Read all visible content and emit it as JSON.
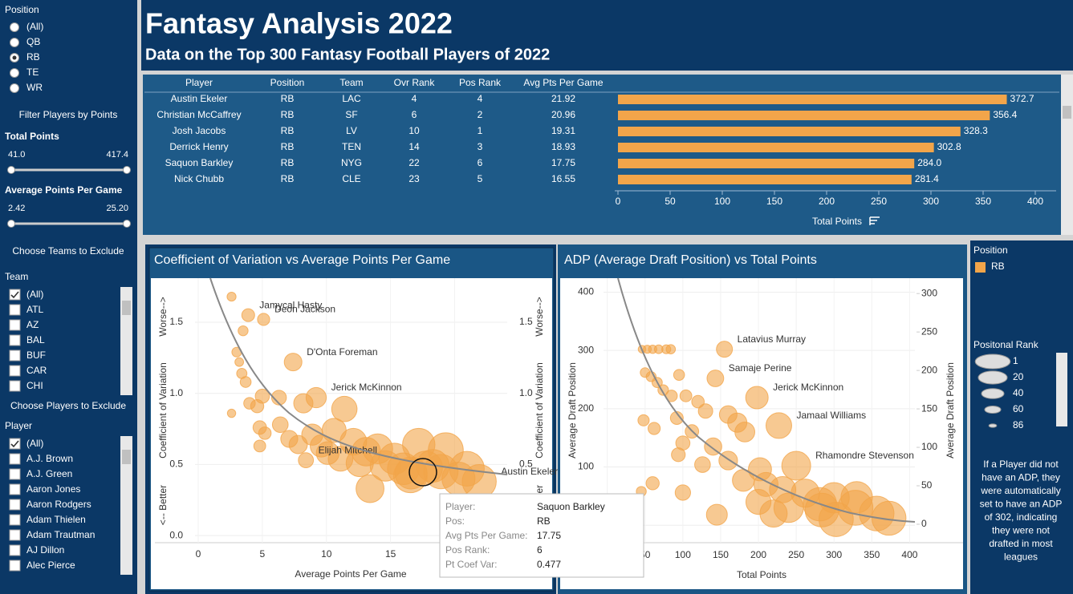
{
  "header": {
    "title": "Fantasy Analysis 2022",
    "subtitle": "Data on the Top 300 Fantasy Football Players of 2022"
  },
  "filters": {
    "position": {
      "title": "Position",
      "options": [
        "(All)",
        "QB",
        "RB",
        "TE",
        "WR"
      ],
      "selected": "RB"
    },
    "points_title": "Filter Players by Points",
    "total_points": {
      "title": "Total Points",
      "min": "41.0",
      "max": "417.4"
    },
    "avg_points": {
      "title": "Average Points Per Game",
      "min": "2.42",
      "max": "25.20"
    },
    "teams": {
      "heading": "Choose Teams to Exclude",
      "title": "Team",
      "options": [
        "(All)",
        "ATL",
        "AZ",
        "BAL",
        "BUF",
        "CAR",
        "CHI"
      ]
    },
    "players": {
      "heading": "Choose Players to Exclude",
      "title": "Player",
      "options": [
        "(All)",
        "A.J. Brown",
        "A.J. Green",
        "Aaron Jones",
        "Aaron Rodgers",
        "Adam Thielen",
        "Adam Trautman",
        "AJ Dillon",
        "Alec Pierce"
      ]
    }
  },
  "table": {
    "columns": [
      "Player",
      "Position",
      "Team",
      "Ovr Rank",
      "Pos Rank",
      "Avg Pts Per Game"
    ],
    "rows": [
      [
        "Austin Ekeler",
        "RB",
        "LAC",
        4,
        4,
        21.92
      ],
      [
        "Christian McCaffrey",
        "RB",
        "SF",
        6,
        2,
        20.96
      ],
      [
        "Josh Jacobs",
        "RB",
        "LV",
        10,
        1,
        19.31
      ],
      [
        "Derrick Henry",
        "RB",
        "TEN",
        14,
        3,
        18.93
      ],
      [
        "Saquon Barkley",
        "RB",
        "NYG",
        22,
        6,
        17.75
      ],
      [
        "Nick Chubb",
        "RB",
        "CLE",
        23,
        5,
        16.55
      ]
    ]
  },
  "chart_data": [
    {
      "type": "hbar",
      "x_label": "Total Points",
      "color": "#f2a54a",
      "values": [
        372.7,
        356.4,
        328.3,
        302.8,
        284.0,
        281.4
      ],
      "value_labels": [
        "372.7",
        "356.4",
        "328.3",
        "302.8",
        "284.0",
        "281.4"
      ],
      "xlim": [
        0,
        420
      ],
      "xticks": [
        0,
        50,
        100,
        150,
        200,
        250,
        300,
        350,
        400
      ]
    },
    {
      "type": "scatter",
      "title": "Coefficient of Variation vs Average Points Per Game",
      "x_label": "Average Points Per Game",
      "y_label": "Coefficient of Variation",
      "y_top_note": "Worse-->",
      "y_bottom_note": "<-- Better",
      "xlim": [
        -0.25,
        24.1
      ],
      "xticks": [
        0,
        5,
        10,
        15,
        20
      ],
      "ylim": [
        -0.05,
        1.81
      ],
      "yticks": [
        {
          "value": 0,
          "label": "0.0"
        },
        {
          "value": 0.5,
          "label": "0.5"
        },
        {
          "value": 1,
          "label": "1.0"
        },
        {
          "value": 1.5,
          "label": "1.5"
        }
      ],
      "grid": true,
      "series": [
        {
          "name": "RB",
          "color": "#f2a54a",
          "x": [
            2.6,
            3.9,
            5.1,
            3.5,
            3.0,
            3.2,
            3.4,
            3.7,
            4.0,
            2.6,
            4.6,
            4.8,
            5.0,
            5.2,
            4.8,
            6.3,
            6.4,
            7.4,
            7.1,
            7.8,
            8.2,
            8.4,
            9.2,
            8.9,
            9.6,
            10.1,
            10.6,
            11.4,
            11.1,
            12.1,
            12.6,
            13.1,
            13.4,
            14.0,
            14.6,
            15.3,
            16.0,
            16.6,
            17.2,
            17.75,
            18.3,
            19.31,
            18.93,
            20.3,
            20.96,
            21.92,
            16.55
          ],
          "values": [
            1.68,
            1.55,
            1.52,
            1.44,
            1.29,
            1.22,
            1.14,
            1.08,
            0.93,
            0.86,
            0.91,
            0.76,
            0.98,
            0.72,
            0.63,
            0.97,
            0.78,
            1.22,
            0.68,
            0.64,
            0.93,
            0.53,
            0.97,
            0.71,
            0.63,
            0.58,
            0.74,
            0.89,
            0.54,
            0.66,
            0.51,
            0.59,
            0.33,
            0.61,
            0.49,
            0.54,
            0.47,
            0.44,
            0.64,
            0.477,
            0.49,
            0.6,
            0.45,
            0.4,
            0.47,
            0.38,
            0.42
          ],
          "sizes": [
            82,
            70,
            72,
            79,
            80,
            83,
            78,
            76,
            74,
            84,
            69,
            68,
            66,
            71,
            73,
            64,
            61,
            55,
            57,
            53,
            50,
            63,
            47,
            44,
            41,
            39,
            35,
            31,
            33,
            27,
            25,
            21,
            23,
            17,
            15,
            13,
            11,
            10,
            9,
            6,
            8,
            1,
            3,
            7,
            2,
            4,
            5
          ],
          "labels": [
            null,
            "Jamycal Hasty",
            "Deon Jackson",
            null,
            null,
            null,
            null,
            null,
            null,
            null,
            null,
            null,
            null,
            null,
            null,
            null,
            null,
            "D'Onta Foreman",
            null,
            null,
            null,
            "Elijah Mitchell",
            "Jerick McKinnon",
            null,
            null,
            null,
            null,
            null,
            null,
            null,
            null,
            null,
            null,
            null,
            null,
            null,
            null,
            null,
            null,
            null,
            null,
            null,
            null,
            null,
            null,
            "Austin Ekeler",
            null
          ]
        }
      ]
    },
    {
      "type": "scatter",
      "title": "ADP (Average Draft Position) vs Total Points",
      "x_label": "Total Points",
      "y_label": "Average Draft Position",
      "xlim": [
        -5,
        407
      ],
      "xticks": [
        0,
        50,
        100,
        150,
        200,
        250,
        300,
        350,
        400
      ],
      "ylim": [
        -30,
        424
      ],
      "yticks": [
        0,
        100,
        200,
        300,
        400
      ],
      "y2lim": [
        -24,
        320
      ],
      "y2ticks": [
        0,
        50,
        100,
        150,
        200,
        250,
        300
      ],
      "grid": true,
      "series": [
        {
          "color": "#f2a54a",
          "x": [
            46,
            53,
            60,
            68,
            78,
            84,
            50,
            58,
            66,
            95,
            74,
            85,
            104,
            120,
            48,
            62,
            92,
            112,
            130,
            155,
            143,
            198,
            160,
            172,
            182,
            227,
            100,
            94,
            140,
            126,
            160,
            202,
            250,
            210,
            180,
            232,
            262,
            300,
            330,
            356.4,
            372.7,
            284,
            328.3,
            302.8,
            281.4,
            240,
            220,
            200,
            145,
            100,
            60,
            45
          ],
          "values": [
            302,
            302,
            302,
            302,
            302,
            302,
            262,
            255,
            245,
            258,
            232,
            222,
            222,
            212,
            180,
            166,
            184,
            161,
            196,
            302,
            252,
            219,
            190,
            176,
            160,
            171,
            141,
            121,
            135,
            104,
            111,
            96,
            102,
            70,
            77,
            61,
            55,
            47,
            48,
            20,
            12,
            26,
            30,
            10,
            36,
            30,
            20,
            40,
            18,
            56,
            72,
            58
          ],
          "sizes": [
            86,
            85,
            84,
            83,
            82,
            81,
            80,
            79,
            78,
            76,
            77,
            74,
            73,
            71,
            75,
            72,
            70,
            68,
            65,
            60,
            58,
            40,
            55,
            50,
            48,
            30,
            66,
            67,
            56,
            61,
            52,
            38,
            20,
            35,
            42,
            28,
            22,
            15,
            12,
            2,
            4,
            5,
            1,
            3,
            6,
            18,
            25,
            32,
            45,
            62,
            69,
            79
          ],
          "labels": [
            null,
            null,
            null,
            null,
            null,
            null,
            null,
            null,
            null,
            null,
            null,
            null,
            null,
            null,
            null,
            null,
            null,
            null,
            null,
            "Latavius Murray",
            "Samaje Perine",
            "Jerick McKinnon",
            null,
            null,
            null,
            "Jamaal Williams",
            null,
            null,
            null,
            null,
            null,
            null,
            "Rhamondre Stevenson",
            null,
            null,
            null,
            null,
            null,
            null,
            null,
            null,
            null,
            null,
            null,
            null,
            null,
            null,
            null,
            null,
            null,
            null,
            null
          ]
        }
      ]
    }
  ],
  "legend": {
    "position_title": "Position",
    "size_title": "Positonal Rank",
    "size_values": [
      1,
      20,
      40,
      60,
      86
    ]
  },
  "note": [
    "If a Player did not",
    "have an ADP, they",
    "were automatically",
    "set to have an ADP",
    "of 302, indicating",
    "they were not",
    "drafted in most",
    "leagues"
  ],
  "tooltip": {
    "rows": [
      [
        "Player:",
        "Saquon Barkley"
      ],
      [
        "Pos:",
        "RB"
      ],
      [
        "Avg Pts Per Game:",
        17.75
      ],
      [
        "Pos Rank:",
        6
      ],
      [
        "Pt Coef Var:",
        0.477
      ]
    ]
  }
}
